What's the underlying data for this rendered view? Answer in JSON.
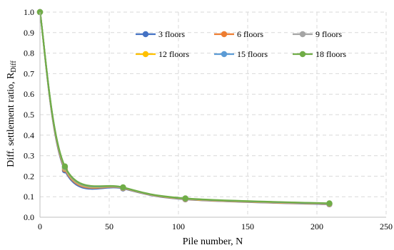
{
  "chart_data": {
    "type": "line",
    "xlabel": "Pile number, N",
    "ylabel": "Diff. settlement ratio, R",
    "ylabel_sub": "Diff",
    "xlim": [
      0,
      250
    ],
    "ylim": [
      0,
      1.0
    ],
    "xticks": [
      "0",
      "50",
      "100",
      "150",
      "200",
      "250"
    ],
    "xtick_values": [
      0,
      50,
      100,
      150,
      200,
      250
    ],
    "yticks": [
      "0.0",
      "0.1",
      "0.2",
      "0.3",
      "0.4",
      "0.5",
      "0.6",
      "0.7",
      "0.8",
      "0.9",
      "1.0"
    ],
    "ytick_values": [
      0,
      0.1,
      0.2,
      0.3,
      0.4,
      0.5,
      0.6,
      0.7,
      0.8,
      0.9,
      1.0
    ],
    "grid": "dashed",
    "legend_position": "top-right",
    "x": [
      0,
      18,
      60,
      105,
      209
    ],
    "series": [
      {
        "name": "3 floors",
        "color": "#4472C4",
        "values": [
          1.0,
          0.228,
          0.14,
          0.087,
          0.063
        ]
      },
      {
        "name": "6 floors",
        "color": "#ED7D31",
        "values": [
          1.0,
          0.234,
          0.142,
          0.088,
          0.064
        ]
      },
      {
        "name": "9 floors",
        "color": "#A5A5A5",
        "values": [
          1.0,
          0.238,
          0.143,
          0.089,
          0.065
        ]
      },
      {
        "name": "12 floors",
        "color": "#FFC000",
        "values": [
          1.0,
          0.242,
          0.144,
          0.09,
          0.066
        ]
      },
      {
        "name": "15 floors",
        "color": "#5B9BD5",
        "values": [
          1.0,
          0.245,
          0.145,
          0.091,
          0.067
        ]
      },
      {
        "name": "18 floors",
        "color": "#70AD47",
        "values": [
          1.0,
          0.248,
          0.146,
          0.092,
          0.068
        ]
      }
    ]
  }
}
